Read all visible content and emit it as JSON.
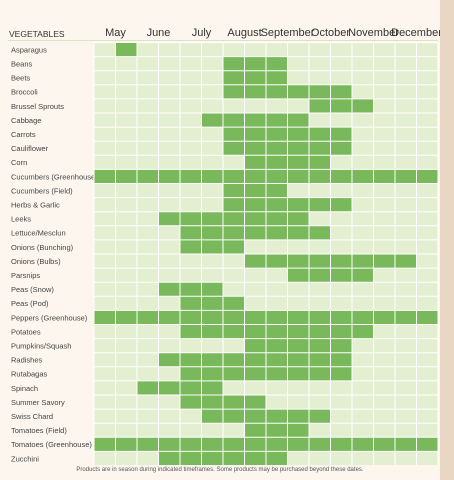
{
  "chart_data": {
    "type": "heatmap",
    "title": "",
    "row_header": "VEGETABLES",
    "months": [
      "May",
      "June",
      "July",
      "August",
      "September",
      "October",
      "November",
      "December"
    ],
    "periods_per_month": 2,
    "legend": "",
    "colors": {
      "in_season": "#79b85b",
      "cell_bg": "#e4efd2",
      "grid_line": "#ffffff",
      "header_line": "#d9e6c5"
    },
    "rows": [
      {
        "name": "Asparagus",
        "start": 1,
        "end": 2
      },
      {
        "name": "Beans",
        "start": 6,
        "end": 9
      },
      {
        "name": "Beets",
        "start": 6,
        "end": 9
      },
      {
        "name": "Broccoli",
        "start": 6,
        "end": 12
      },
      {
        "name": "Brussel Sprouts",
        "start": 10,
        "end": 13
      },
      {
        "name": "Cabbage",
        "start": 5,
        "end": 10
      },
      {
        "name": "Carrots",
        "start": 6,
        "end": 12
      },
      {
        "name": "Cauliflower",
        "start": 6,
        "end": 12
      },
      {
        "name": "Corn",
        "start": 7,
        "end": 11
      },
      {
        "name": "Cucumbers (Greenhouse)",
        "start": 0,
        "end": 16
      },
      {
        "name": "Cucumbers (Field)",
        "start": 6,
        "end": 9
      },
      {
        "name": "Herbs & Garlic",
        "start": 6,
        "end": 12
      },
      {
        "name": "Leeks",
        "start": 3,
        "end": 10
      },
      {
        "name": "Lettuce/Mesclun",
        "start": 4,
        "end": 11
      },
      {
        "name": "Onions (Bunching)",
        "start": 4,
        "end": 7
      },
      {
        "name": "Onions (Bulbs)",
        "start": 7,
        "end": 15
      },
      {
        "name": "Parsnips",
        "start": 9,
        "end": 13
      },
      {
        "name": "Peas (Snow)",
        "start": 3,
        "end": 6
      },
      {
        "name": "Peas (Pod)",
        "start": 4,
        "end": 7
      },
      {
        "name": "Peppers (Greenhouse)",
        "start": 0,
        "end": 16
      },
      {
        "name": "Potatoes",
        "start": 4,
        "end": 13
      },
      {
        "name": "Pumpkins/Squash",
        "start": 7,
        "end": 12
      },
      {
        "name": "Radishes",
        "start": 3,
        "end": 12
      },
      {
        "name": "Rutabagas",
        "start": 4,
        "end": 12
      },
      {
        "name": "Spinach",
        "start": 2,
        "end": 6
      },
      {
        "name": "Summer Savory",
        "start": 4,
        "end": 8
      },
      {
        "name": "Swiss Chard",
        "start": 5,
        "end": 11
      },
      {
        "name": "Tomatoes (Field)",
        "start": 7,
        "end": 10
      },
      {
        "name": "Tomatoes (Greenhouse)",
        "start": 0,
        "end": 16
      },
      {
        "name": "Zucchini",
        "start": 3,
        "end": 9
      }
    ]
  },
  "footnote": "Products are in season during indicated timeframes.  Some products may be purchased beyond these dates."
}
